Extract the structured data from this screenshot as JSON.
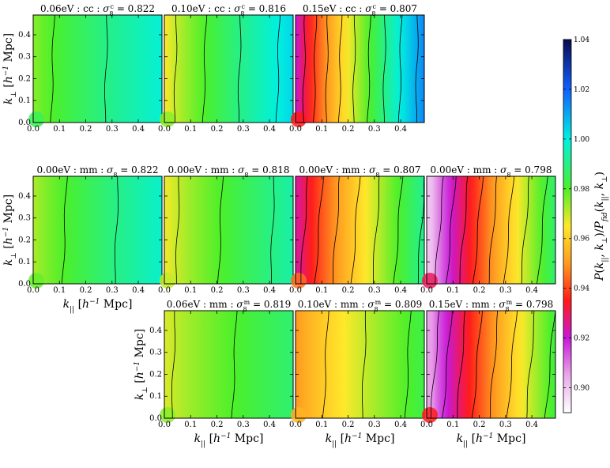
{
  "chart_data": {
    "type": "heatmap",
    "description_of_layout": "3x4 grid of panels; row 0 has panels in columns 0-2, row 1 in columns 0-3, row 2 in columns 1-3",
    "x_ticks": [
      "0.0",
      "0.1",
      "0.2",
      "0.3",
      "0.4"
    ],
    "y_ticks": [
      "0.0",
      "0.1",
      "0.2",
      "0.3",
      "0.4"
    ],
    "xlim": [
      0.0,
      0.49
    ],
    "ylim": [
      0.0,
      0.49
    ],
    "xlabel": "k_|| [h^-1 Mpc]",
    "ylabel": "k_⊥ [h^-1 Mpc]",
    "colorbar": {
      "label": "P(k_||, k_⊥) / P_fid(k_||, k_⊥)",
      "min": 0.89,
      "max": 1.04,
      "ticks": [
        "0.90",
        "0.92",
        "0.94",
        "0.96",
        "0.98",
        "1.00",
        "1.02",
        "1.04"
      ],
      "tick_values": [
        0.9,
        0.92,
        0.94,
        0.96,
        0.98,
        1.0,
        1.02,
        1.04
      ],
      "stops": [
        {
          "v": 0.89,
          "color": "#ffffff"
        },
        {
          "v": 0.905,
          "color": "#e9a8ea"
        },
        {
          "v": 0.92,
          "color": "#c818d8"
        },
        {
          "v": 0.935,
          "color": "#ff1a1a"
        },
        {
          "v": 0.95,
          "color": "#ff9a20"
        },
        {
          "v": 0.965,
          "color": "#ffe82a"
        },
        {
          "v": 0.98,
          "color": "#4cf02a"
        },
        {
          "v": 1.0,
          "color": "#00f0e0"
        },
        {
          "v": 1.02,
          "color": "#1060ff"
        },
        {
          "v": 1.04,
          "color": "#0a0a50"
        }
      ]
    },
    "panels": [
      {
        "id": "p-00",
        "row": 0,
        "col": 0,
        "mass": "0.06eV",
        "kind": "cc",
        "sigma_sup": "c",
        "sigma": "0.822",
        "low": 0.975,
        "high": 0.999,
        "corner": 0.985,
        "tilt": 0.02,
        "show_ylabel": true,
        "show_xlabel": false
      },
      {
        "id": "p-01",
        "row": 0,
        "col": 1,
        "mass": "0.10eV",
        "kind": "cc",
        "sigma_sup": "c",
        "sigma": "0.816",
        "low": 0.965,
        "high": 1.004,
        "corner": 0.975,
        "tilt": 0.02,
        "show_ylabel": false,
        "show_xlabel": false
      },
      {
        "id": "p-02",
        "row": 0,
        "col": 2,
        "mass": "0.15eV",
        "kind": "cc",
        "sigma_sup": "c",
        "sigma": "0.807",
        "low": 0.92,
        "high": 1.015,
        "corner": 0.935,
        "tilt": 0.015,
        "show_ylabel": false,
        "show_xlabel": false
      },
      {
        "id": "p-10",
        "row": 1,
        "col": 0,
        "mass": "0.00eV",
        "kind": "mm",
        "sigma_sup": "",
        "sigma": "0.822",
        "low": 0.972,
        "high": 0.998,
        "corner": 0.978,
        "tilt": 0.03,
        "show_ylabel": true,
        "show_xlabel": true
      },
      {
        "id": "p-11",
        "row": 1,
        "col": 1,
        "mass": "0.00eV",
        "kind": "mm",
        "sigma_sup": "",
        "sigma": "0.818",
        "low": 0.966,
        "high": 0.994,
        "corner": 0.97,
        "tilt": 0.03,
        "show_ylabel": false,
        "show_xlabel": false
      },
      {
        "id": "p-12",
        "row": 1,
        "col": 2,
        "mass": "0.00eV",
        "kind": "mm",
        "sigma_sup": "",
        "sigma": "0.807",
        "low": 0.925,
        "high": 0.993,
        "corner": 0.945,
        "tilt": 0.06,
        "show_ylabel": false,
        "show_xlabel": false
      },
      {
        "id": "p-13",
        "row": 1,
        "col": 3,
        "mass": "0.00eV",
        "kind": "mm",
        "sigma_sup": "",
        "sigma": "0.798",
        "low": 0.9,
        "high": 0.99,
        "corner": 0.93,
        "tilt": 0.07,
        "show_ylabel": false,
        "show_xlabel": false
      },
      {
        "id": "p-21",
        "row": 2,
        "col": 1,
        "mass": "0.06eV",
        "kind": "mm",
        "sigma_sup": "m",
        "sigma": "0.819",
        "low": 0.968,
        "high": 0.988,
        "corner": 0.975,
        "tilt": 0.03,
        "show_ylabel": true,
        "show_xlabel": true
      },
      {
        "id": "p-22",
        "row": 2,
        "col": 2,
        "mass": "0.10eV",
        "kind": "mm",
        "sigma_sup": "m",
        "sigma": "0.809",
        "low": 0.95,
        "high": 0.984,
        "corner": 0.955,
        "tilt": 0.035,
        "show_ylabel": false,
        "show_xlabel": true
      },
      {
        "id": "p-23",
        "row": 2,
        "col": 3,
        "mass": "0.15eV",
        "kind": "mm",
        "sigma_sup": "m",
        "sigma": "0.798",
        "low": 0.905,
        "high": 0.985,
        "corner": 0.935,
        "tilt": 0.07,
        "show_ylabel": false,
        "show_xlabel": true
      }
    ]
  }
}
